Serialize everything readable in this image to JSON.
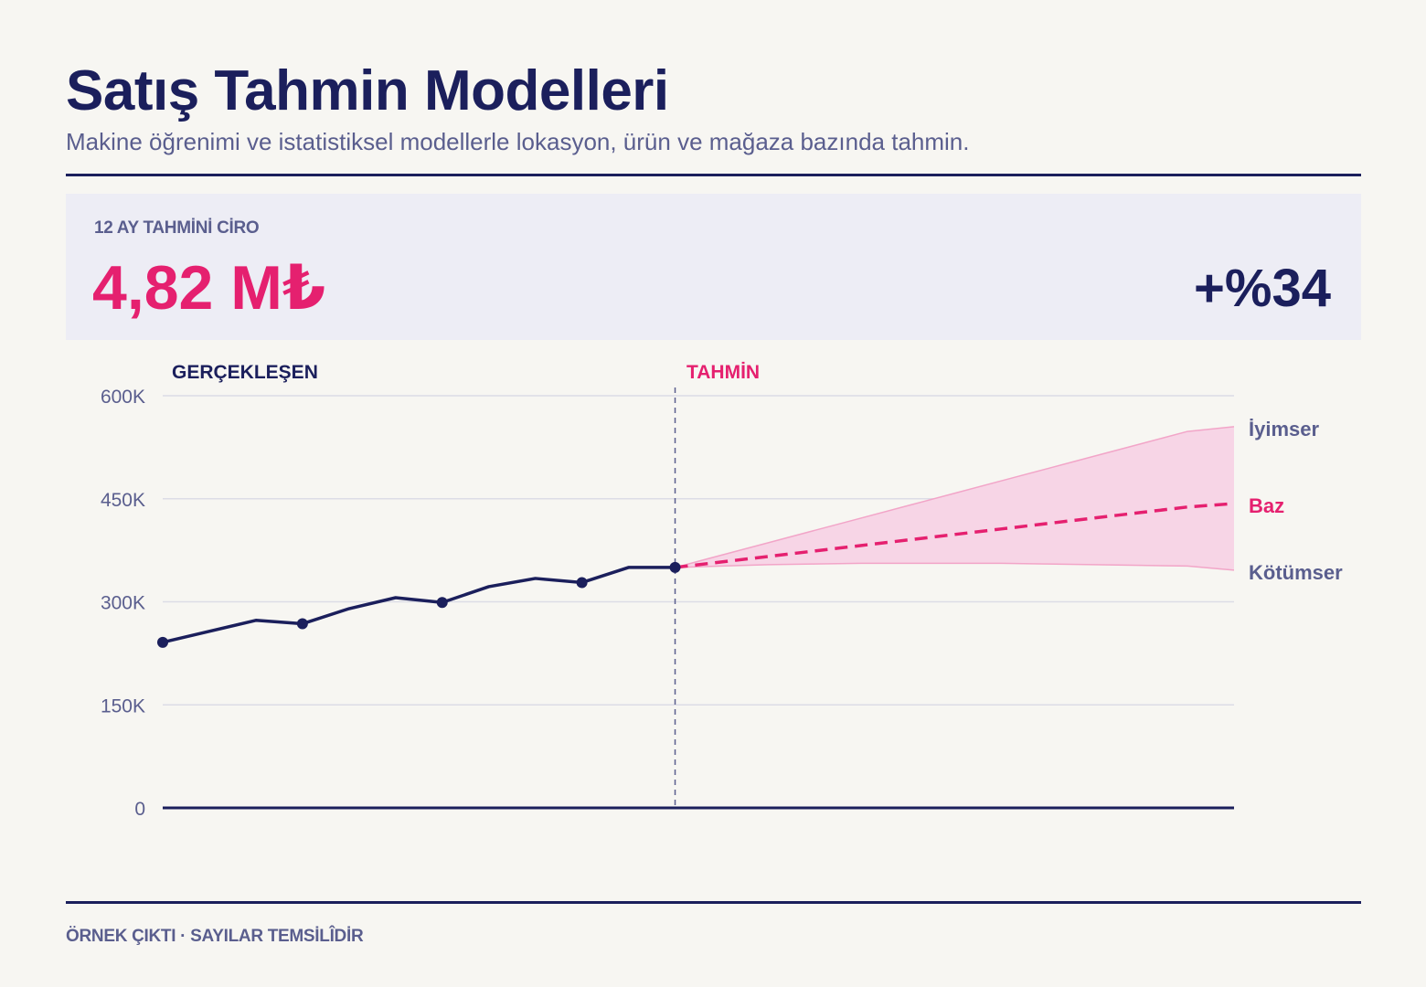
{
  "header": {
    "title": "Satış Tahmin Modelleri",
    "subtitle": "Makine öğrenimi ve istatistiksel modellerle lokasyon, ürün ve mağaza bazında tahmin."
  },
  "kpi": {
    "label": "12 AY TAHMİNİ CİRO",
    "value": "4,82 M₺",
    "change": "+%34"
  },
  "footer": {
    "note": "ÖRNEK ÇIKTI · SAYILAR TEMSİLÎDİR"
  },
  "colors": {
    "navy": "#1b1f5c",
    "accent": "#e5206f",
    "muted": "#5a5e8e",
    "band_fill": "#f7d5e6",
    "band_edge": "#f2a5c8",
    "grid": "#dcdce6",
    "background": "#f7f6f2"
  },
  "chart_data": {
    "type": "line",
    "region_labels": {
      "actual": "GERÇEKLEŞEN",
      "forecast": "TAHMİN"
    },
    "y_ticks": [
      {
        "value": 0,
        "label": "0"
      },
      {
        "value": 150000,
        "label": "150K"
      },
      {
        "value": 300000,
        "label": "300K"
      },
      {
        "value": 450000,
        "label": "450K"
      },
      {
        "value": 600000,
        "label": "600K"
      }
    ],
    "ylim": [
      0,
      600000
    ],
    "xlim": [
      0,
      23
    ],
    "grid": true,
    "actual": {
      "x": [
        0,
        1,
        2,
        3,
        4,
        5,
        6,
        7,
        8,
        9,
        10,
        11
      ],
      "y": [
        241000,
        257000,
        273000,
        268000,
        290000,
        306000,
        299000,
        322000,
        334000,
        328000,
        350000,
        350000
      ],
      "markers": [
        0,
        3,
        6,
        9,
        11
      ]
    },
    "forecast_start_x": 11,
    "forecast": {
      "x": [
        11,
        12,
        13,
        14,
        15,
        16,
        17,
        18,
        19,
        20,
        21,
        22,
        23
      ],
      "base": [
        350000,
        358000,
        366000,
        374000,
        382000,
        390000,
        398000,
        406000,
        414000,
        422000,
        430000,
        438000,
        443000
      ],
      "optimistic": [
        350000,
        368000,
        386000,
        404000,
        422000,
        440000,
        458000,
        476000,
        494000,
        512000,
        530000,
        548000,
        555000
      ],
      "pessimistic": [
        350000,
        352000,
        354000,
        355000,
        356000,
        356000,
        356000,
        356000,
        355000,
        354000,
        353000,
        352000,
        346000
      ]
    },
    "scenario_labels": {
      "optimistic": "İyimser",
      "base": "Baz",
      "pessimistic": "Kötümser"
    }
  }
}
